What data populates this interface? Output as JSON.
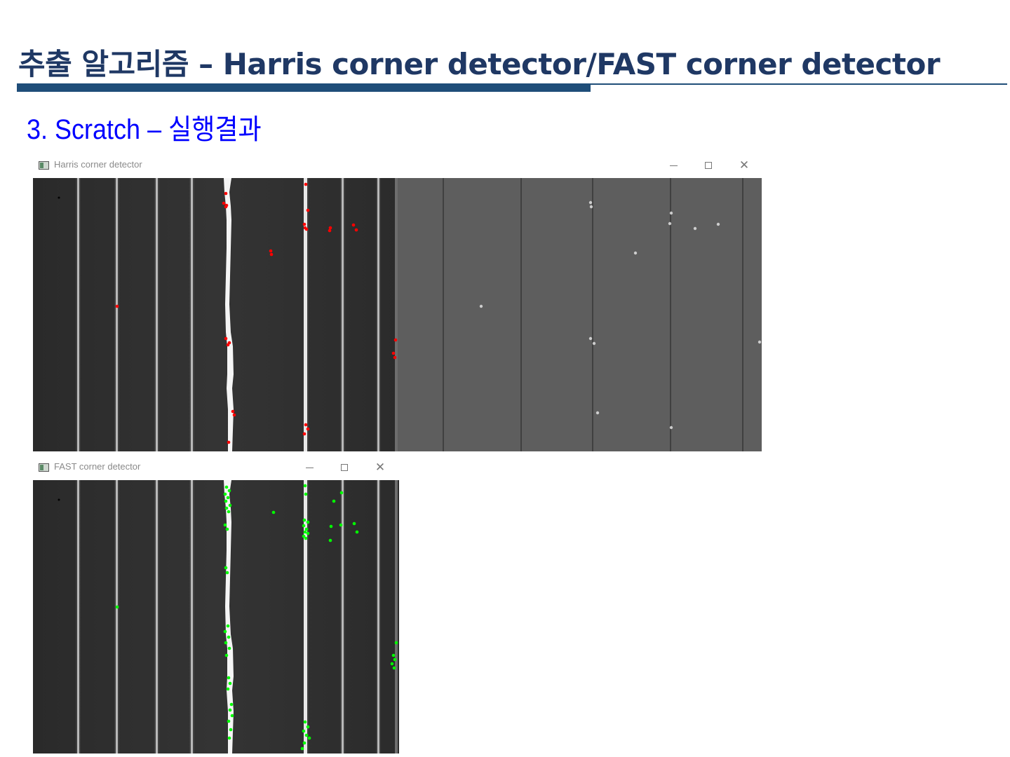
{
  "slide": {
    "title": "추출 알고리즘 – Harris corner detector/FAST corner detector",
    "section": "3. Scratch – 실행결과"
  },
  "windows": {
    "harris": {
      "title": "Harris corner detector",
      "icon": "opencv-window-icon",
      "controls": [
        "minimize-icon",
        "maximize-icon",
        "close-icon"
      ],
      "marker_color": "#ff0000"
    },
    "fast": {
      "title": "FAST corner detector",
      "icon": "opencv-window-icon",
      "controls": [
        "minimize-icon",
        "maximize-icon",
        "close-icon"
      ],
      "marker_color": "#00ff00"
    }
  },
  "colors": {
    "title": "#1f3864",
    "section": "#0000ff",
    "accent_bar": "#1f4e79",
    "image_dark": "#2c2c2c",
    "image_mid_gray": "#5e5e5e"
  }
}
